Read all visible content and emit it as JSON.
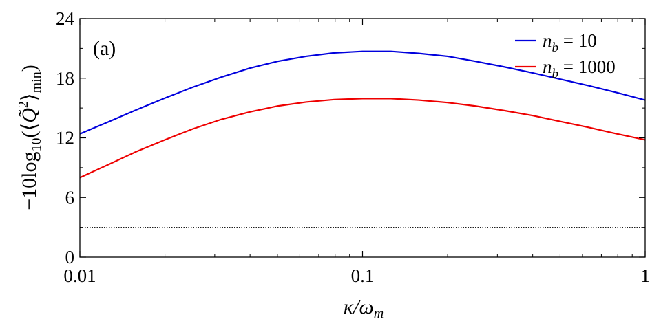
{
  "chart_data": {
    "type": "line",
    "panel_label": "(a)",
    "xscale": "log",
    "xlim": [
      0.01,
      1
    ],
    "ylim": [
      0,
      24
    ],
    "xticks": [
      {
        "value": 0.01,
        "label": "0.01"
      },
      {
        "value": 0.1,
        "label": "0.1"
      },
      {
        "value": 1,
        "label": "1"
      }
    ],
    "yticks": [
      {
        "value": 0,
        "label": "0"
      },
      {
        "value": 6,
        "label": "6"
      },
      {
        "value": 12,
        "label": "12"
      },
      {
        "value": 18,
        "label": "18"
      },
      {
        "value": 24,
        "label": "24"
      }
    ],
    "xlabel_parts": [
      "κ",
      "/ω",
      "m"
    ],
    "ylabel_parts": [
      "−10log",
      "10",
      "(⟨",
      "Q̃",
      "2",
      "⟩",
      "min",
      ")"
    ],
    "legend_position": "top-right",
    "reference_line": {
      "y": 3.0,
      "style": "dotted",
      "color": "#000000"
    },
    "series": [
      {
        "name_parts": [
          "n",
          "b",
          " = 10"
        ],
        "color": "#0000dd",
        "x": [
          0.01,
          0.0126,
          0.0158,
          0.02,
          0.0251,
          0.0316,
          0.0398,
          0.0501,
          0.0631,
          0.0794,
          0.1,
          0.126,
          0.158,
          0.2,
          0.251,
          0.316,
          0.398,
          0.501,
          0.631,
          0.794,
          1.0
        ],
        "y": [
          12.4,
          13.6,
          14.8,
          16.0,
          17.1,
          18.1,
          19.0,
          19.7,
          20.2,
          20.55,
          20.7,
          20.7,
          20.5,
          20.2,
          19.7,
          19.15,
          18.55,
          17.9,
          17.25,
          16.55,
          15.8
        ]
      },
      {
        "name_parts": [
          "n",
          "b",
          " = 1000"
        ],
        "color": "#ee0000",
        "x": [
          0.01,
          0.0126,
          0.0158,
          0.02,
          0.0251,
          0.0316,
          0.0398,
          0.0501,
          0.0631,
          0.0794,
          0.1,
          0.126,
          0.158,
          0.2,
          0.251,
          0.316,
          0.398,
          0.501,
          0.631,
          0.794,
          1.0
        ],
        "y": [
          8.0,
          9.3,
          10.6,
          11.8,
          12.9,
          13.85,
          14.6,
          15.2,
          15.6,
          15.85,
          15.95,
          15.95,
          15.8,
          15.55,
          15.2,
          14.75,
          14.25,
          13.65,
          13.05,
          12.4,
          11.8
        ]
      }
    ]
  }
}
